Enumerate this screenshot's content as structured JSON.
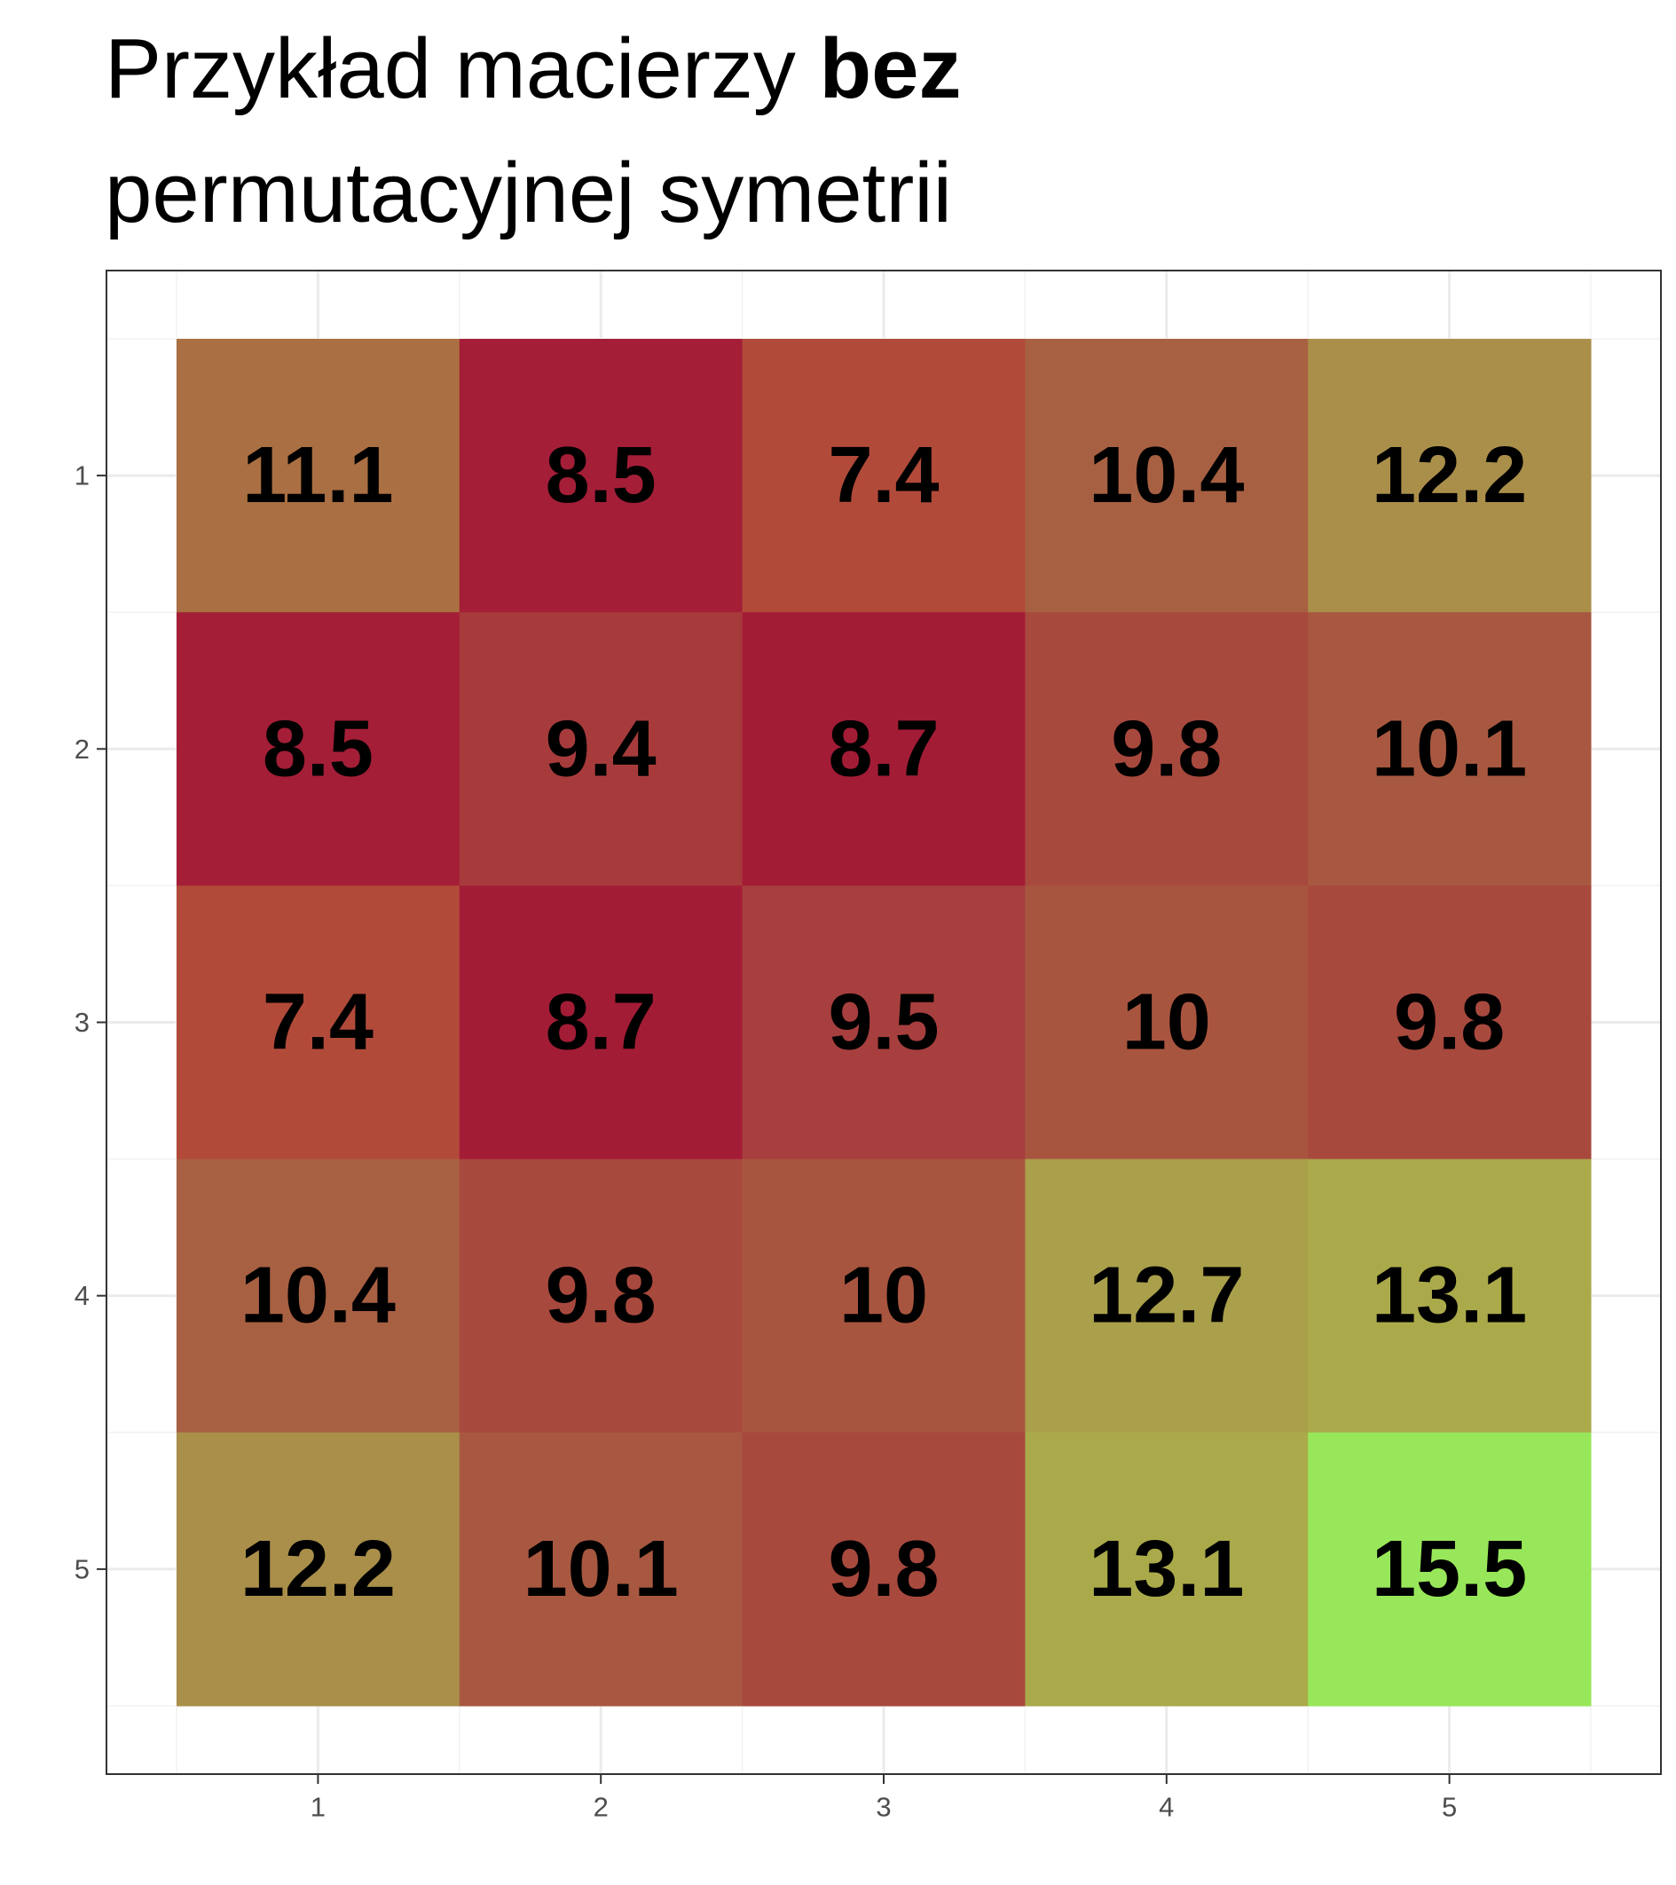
{
  "title": {
    "line1_regular": "Przykład macierzy ",
    "line1_bold": "bez",
    "line2": "permutacyjnej symetrii"
  },
  "chart_data": {
    "type": "heatmap",
    "title": "Przykład macierzy bez permutacyjnej symetrii",
    "xlabel": "",
    "ylabel": "",
    "x_categories": [
      "1",
      "2",
      "3",
      "4",
      "5"
    ],
    "y_categories": [
      "1",
      "2",
      "3",
      "4",
      "5"
    ],
    "grid": true,
    "values": [
      [
        11.1,
        8.5,
        7.4,
        10.4,
        12.2
      ],
      [
        8.5,
        9.4,
        8.7,
        9.8,
        10.1
      ],
      [
        7.4,
        8.7,
        9.5,
        10,
        9.8
      ],
      [
        10.4,
        9.8,
        10,
        12.7,
        13.1
      ],
      [
        12.2,
        10.1,
        9.8,
        13.1,
        15.5
      ]
    ],
    "labels": [
      [
        "11.1",
        "8.5",
        "7.4",
        "10.4",
        "12.2"
      ],
      [
        "8.5",
        "9.4",
        "8.7",
        "9.8",
        "10.1"
      ],
      [
        "7.4",
        "8.7",
        "9.5",
        "10",
        "9.8"
      ],
      [
        "10.4",
        "9.8",
        "10",
        "12.7",
        "13.1"
      ],
      [
        "12.2",
        "10.1",
        "9.8",
        "13.1",
        "15.5"
      ]
    ],
    "colors": [
      [
        "#AA6F42",
        "#A41E37",
        "#B24A3A",
        "#A86042",
        "#AA8F4A"
      ],
      [
        "#A41E37",
        "#A73B3C",
        "#A31C36",
        "#A8493E",
        "#A85840"
      ],
      [
        "#B24A3A",
        "#A31C36",
        "#A73F3E",
        "#A8553F",
        "#A8493E"
      ],
      [
        "#A86042",
        "#A8493E",
        "#A8553F",
        "#AAA04B",
        "#AAAA4B"
      ],
      [
        "#AA8F4A",
        "#A85840",
        "#A8493E",
        "#AAAA4B",
        "#98E75A"
      ]
    ]
  }
}
